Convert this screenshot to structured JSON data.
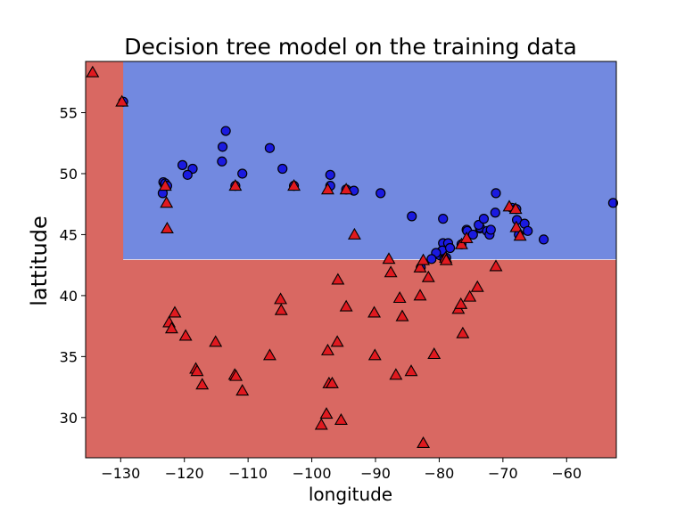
{
  "chart_data": {
    "type": "scatter",
    "title": "Decision tree model on the training data",
    "xlabel": "longitude",
    "ylabel": "lattitude",
    "xlim": [
      -135.5,
      -52.2
    ],
    "ylim": [
      26.7,
      59.2
    ],
    "xticks": [
      -130,
      -120,
      -110,
      -100,
      -90,
      -80,
      -70,
      -60
    ],
    "yticks": [
      30,
      35,
      40,
      45,
      50,
      55
    ],
    "decision_regions": {
      "split_longitude": -129.6,
      "split_latitude": 42.95,
      "blue_region_color": "#7289e0",
      "red_region_color": "#d96862"
    },
    "colors": {
      "circle": "#1a1ae0",
      "triangle": "#e0191f"
    },
    "series": [
      {
        "marker": "circle",
        "points": [
          [
            -129.6,
            55.9
          ],
          [
            -123.3,
            49.3
          ],
          [
            -123.1,
            49.1
          ],
          [
            -123.0,
            49.2
          ],
          [
            -122.7,
            49.0
          ],
          [
            -123.4,
            48.4
          ],
          [
            -120.3,
            50.7
          ],
          [
            -118.7,
            50.4
          ],
          [
            -119.5,
            49.9
          ],
          [
            -113.5,
            53.5
          ],
          [
            -114.0,
            52.2
          ],
          [
            -114.1,
            51.0
          ],
          [
            -112.0,
            49.0
          ],
          [
            -110.9,
            50.0
          ],
          [
            -106.6,
            52.1
          ],
          [
            -104.6,
            50.4
          ],
          [
            -102.8,
            49.0
          ],
          [
            -97.1,
            49.9
          ],
          [
            -97.1,
            49.0
          ],
          [
            -94.6,
            48.7
          ],
          [
            -93.4,
            48.6
          ],
          [
            -89.2,
            48.4
          ],
          [
            -84.3,
            46.5
          ],
          [
            -79.4,
            46.3
          ],
          [
            -79.4,
            44.3
          ],
          [
            -79.7,
            43.6
          ],
          [
            -79.9,
            43.3
          ],
          [
            -79.5,
            43.7
          ],
          [
            -79.2,
            43.0
          ],
          [
            -80.5,
            43.5
          ],
          [
            -81.2,
            43.0
          ],
          [
            -82.9,
            42.3
          ],
          [
            -78.6,
            44.3
          ],
          [
            -78.3,
            43.9
          ],
          [
            -78.9,
            43.1
          ],
          [
            -76.5,
            44.2
          ],
          [
            -75.7,
            45.4
          ],
          [
            -75.6,
            45.3
          ],
          [
            -74.7,
            45.0
          ],
          [
            -73.6,
            45.5
          ],
          [
            -73.6,
            45.6
          ],
          [
            -73.8,
            45.8
          ],
          [
            -73.0,
            46.3
          ],
          [
            -72.5,
            45.3
          ],
          [
            -72.1,
            45.0
          ],
          [
            -71.9,
            45.4
          ],
          [
            -71.2,
            46.8
          ],
          [
            -71.1,
            48.4
          ],
          [
            -68.6,
            47.2
          ],
          [
            -67.9,
            47.1
          ],
          [
            -67.8,
            46.2
          ],
          [
            -66.6,
            45.9
          ],
          [
            -66.1,
            45.3
          ],
          [
            -67.5,
            45.0
          ],
          [
            -63.6,
            44.6
          ],
          [
            -52.7,
            47.6
          ]
        ]
      },
      {
        "marker": "triangle",
        "points": [
          [
            -134.4,
            58.3
          ],
          [
            -129.8,
            55.9
          ],
          [
            -122.8,
            47.6
          ],
          [
            -122.7,
            45.5
          ],
          [
            -123.0,
            49.0
          ],
          [
            -122.4,
            37.8
          ],
          [
            -122.0,
            37.3
          ],
          [
            -121.5,
            38.6
          ],
          [
            -119.8,
            36.7
          ],
          [
            -118.2,
            34.0
          ],
          [
            -118.0,
            33.8
          ],
          [
            -117.2,
            32.7
          ],
          [
            -115.1,
            36.2
          ],
          [
            -112.1,
            33.5
          ],
          [
            -111.9,
            33.4
          ],
          [
            -110.9,
            32.2
          ],
          [
            -112.0,
            49.0
          ],
          [
            -106.6,
            35.1
          ],
          [
            -104.9,
            39.7
          ],
          [
            -104.8,
            38.8
          ],
          [
            -102.8,
            49.0
          ],
          [
            -97.5,
            35.5
          ],
          [
            -97.5,
            48.7
          ],
          [
            -97.3,
            32.8
          ],
          [
            -96.8,
            32.8
          ],
          [
            -97.7,
            30.3
          ],
          [
            -98.5,
            29.4
          ],
          [
            -95.4,
            29.8
          ],
          [
            -95.9,
            41.3
          ],
          [
            -96.0,
            36.2
          ],
          [
            -94.6,
            39.1
          ],
          [
            -94.6,
            48.7
          ],
          [
            -93.3,
            45.0
          ],
          [
            -90.1,
            35.1
          ],
          [
            -90.2,
            38.6
          ],
          [
            -87.6,
            41.9
          ],
          [
            -87.9,
            43.0
          ],
          [
            -86.2,
            39.8
          ],
          [
            -85.8,
            38.3
          ],
          [
            -86.8,
            33.5
          ],
          [
            -84.4,
            33.8
          ],
          [
            -83.0,
            40.0
          ],
          [
            -83.0,
            42.3
          ],
          [
            -82.5,
            42.9
          ],
          [
            -81.7,
            41.5
          ],
          [
            -80.8,
            35.2
          ],
          [
            -82.5,
            27.9
          ],
          [
            -79.0,
            43.1
          ],
          [
            -78.9,
            42.9
          ],
          [
            -77.0,
            38.9
          ],
          [
            -76.6,
            39.3
          ],
          [
            -75.2,
            39.9
          ],
          [
            -74.0,
            40.7
          ],
          [
            -76.3,
            36.9
          ],
          [
            -76.5,
            44.2
          ],
          [
            -75.7,
            44.7
          ],
          [
            -71.1,
            42.4
          ],
          [
            -69.0,
            47.3
          ],
          [
            -68.0,
            47.1
          ],
          [
            -67.9,
            45.6
          ],
          [
            -67.3,
            44.9
          ]
        ]
      }
    ]
  }
}
